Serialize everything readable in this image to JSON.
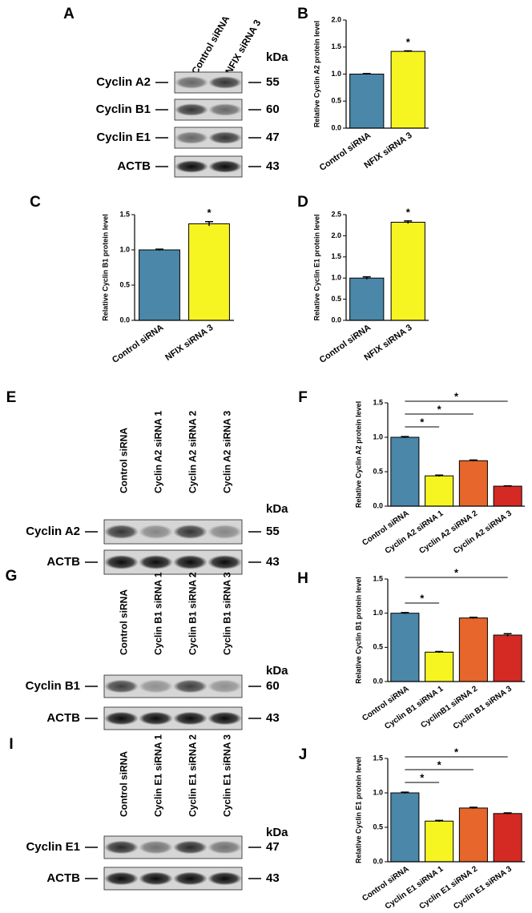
{
  "blots": [
    {
      "panel": "A",
      "lanes": [
        "Control siRNA",
        "NFIX siRNA 3"
      ],
      "kda_header": "kDa",
      "rows": [
        {
          "label": "Cyclin A2",
          "kda": 55
        },
        {
          "label": "Cyclin B1",
          "kda": 60
        },
        {
          "label": "Cyclin E1",
          "kda": 47
        },
        {
          "label": "ACTB",
          "kda": 43
        }
      ]
    },
    {
      "panel": "E",
      "lanes": [
        "Control siRNA",
        "Cyclin A2 siRNA 1",
        "Cyclin A2 siRNA 2",
        "Cyclin A2 siRNA 3"
      ],
      "kda_header": "kDa",
      "rows": [
        {
          "label": "Cyclin A2",
          "kda": 55
        },
        {
          "label": "ACTB",
          "kda": 43
        }
      ]
    },
    {
      "panel": "G",
      "lanes": [
        "Control siRNA",
        "Cyclin B1 siRNA 1",
        "Cyclin B1 siRNA 2",
        "Cyclin B1 siRNA 3"
      ],
      "kda_header": "kDa",
      "rows": [
        {
          "label": "Cyclin B1",
          "kda": 60
        },
        {
          "label": "ACTB",
          "kda": 43
        }
      ]
    },
    {
      "panel": "I",
      "lanes": [
        "Control siRNA",
        "Cyclin E1 siRNA 1",
        "Cyclin E1 siRNA 2",
        "Cyclin E1 siRNA 3"
      ],
      "kda_header": "kDa",
      "rows": [
        {
          "label": "Cyclin E1",
          "kda": 47
        },
        {
          "label": "ACTB",
          "kda": 43
        }
      ]
    }
  ],
  "chart_data": [
    {
      "type": "bar",
      "panel": "B",
      "y_label": "Relative Cyclin A2 protein level",
      "categories": [
        "Control siRNA",
        "NFIX siRNA 3"
      ],
      "values": [
        1.0,
        1.42
      ],
      "errors": [
        0.01,
        0.01
      ],
      "colors": [
        "#4a87a8",
        "#f7f521"
      ],
      "ylim": [
        0,
        2.0
      ],
      "yticks": [
        {
          "value": 0,
          "label": "0.0"
        },
        {
          "value": 0.5,
          "label": "0.5"
        },
        {
          "value": 1.0,
          "label": "1.0"
        },
        {
          "value": 1.5,
          "label": "1.5"
        },
        {
          "value": 2.0,
          "label": "2.0"
        }
      ],
      "significance": [
        {
          "label": "*",
          "from": 1,
          "to": 1
        }
      ]
    },
    {
      "type": "bar",
      "panel": "C",
      "y_label": "Relative Cyclin B1 protein level",
      "categories": [
        "Control siRNA",
        "NFIX siRNA 3"
      ],
      "values": [
        1.0,
        1.37
      ],
      "errors": [
        0.01,
        0.03
      ],
      "colors": [
        "#4a87a8",
        "#f7f521"
      ],
      "ylim": [
        0,
        1.5
      ],
      "yticks": [
        {
          "value": 0,
          "label": "0.0"
        },
        {
          "value": 0.5,
          "label": "0.5"
        },
        {
          "value": 1.0,
          "label": "1.0"
        },
        {
          "value": 1.5,
          "label": "1.5"
        }
      ],
      "significance": [
        {
          "label": "*",
          "from": 1,
          "to": 1
        }
      ]
    },
    {
      "type": "bar",
      "panel": "D",
      "y_label": "Relative Cyclin E1 protein level",
      "categories": [
        "Control siRNA",
        "NFIX siRNA 3"
      ],
      "values": [
        1.0,
        2.32
      ],
      "errors": [
        0.03,
        0.03
      ],
      "colors": [
        "#4a87a8",
        "#f7f521"
      ],
      "ylim": [
        0,
        2.5
      ],
      "yticks": [
        {
          "value": 0,
          "label": "0.0"
        },
        {
          "value": 0.5,
          "label": "0.5"
        },
        {
          "value": 1.0,
          "label": "1.0"
        },
        {
          "value": 1.5,
          "label": "1.5"
        },
        {
          "value": 2.0,
          "label": "2.0"
        },
        {
          "value": 2.5,
          "label": "2.5"
        }
      ],
      "significance": [
        {
          "label": "*",
          "from": 1,
          "to": 1
        }
      ]
    },
    {
      "type": "bar",
      "panel": "F",
      "y_label": "Relative Cyclin A2 protein level",
      "categories": [
        "Control siRNA",
        "Cyclin A2 siRNA 1",
        "Cyclin A2 siRNA 2",
        "Cyclin A2 siRNA 3"
      ],
      "values": [
        1.0,
        0.44,
        0.66,
        0.29
      ],
      "errors": [
        0.01,
        0.01,
        0.01,
        0.005
      ],
      "colors": [
        "#4a87a8",
        "#f7f521",
        "#e6662b",
        "#d52a24"
      ],
      "ylim": [
        0,
        1.5
      ],
      "yticks": [
        {
          "value": 0,
          "label": "0.0"
        },
        {
          "value": 0.5,
          "label": "0.5"
        },
        {
          "value": 1.0,
          "label": "1.0"
        },
        {
          "value": 1.5,
          "label": "1.5"
        }
      ],
      "significance": [
        {
          "label": "*",
          "from": 0,
          "to": 1
        },
        {
          "label": "*",
          "from": 0,
          "to": 2
        },
        {
          "label": "*",
          "from": 0,
          "to": 3
        }
      ]
    },
    {
      "type": "bar",
      "panel": "H",
      "y_label": "Relative Cyclin B1 protein level",
      "categories": [
        "Control siRNA",
        "Cyclin B1 siRNA 1",
        "CyclinB1 siRNA 2",
        "Cyclin B1 siRNA 3"
      ],
      "values": [
        1.0,
        0.43,
        0.93,
        0.68
      ],
      "errors": [
        0.01,
        0.01,
        0.01,
        0.02
      ],
      "colors": [
        "#4a87a8",
        "#f7f521",
        "#e6662b",
        "#d52a24"
      ],
      "ylim": [
        0,
        1.5
      ],
      "yticks": [
        {
          "value": 0,
          "label": "0.0"
        },
        {
          "value": 0.5,
          "label": "0.5"
        },
        {
          "value": 1.0,
          "label": "1.0"
        },
        {
          "value": 1.5,
          "label": "1.5"
        }
      ],
      "significance": [
        {
          "label": "*",
          "from": 0,
          "to": 1
        },
        {
          "label": "*",
          "from": 0,
          "to": 3
        }
      ]
    },
    {
      "type": "bar",
      "panel": "J",
      "y_label": "Relative Cyclin E1 protein level",
      "categories": [
        "Control siRNA",
        "Cyclin E1 siRNA 1",
        "Cyclin E1 siRNA 2",
        "Cyclin E1 siRNA 3"
      ],
      "values": [
        1.0,
        0.59,
        0.78,
        0.7
      ],
      "errors": [
        0.01,
        0.01,
        0.01,
        0.01
      ],
      "colors": [
        "#4a87a8",
        "#f7f521",
        "#e6662b",
        "#d52a24"
      ],
      "ylim": [
        0,
        1.5
      ],
      "yticks": [
        {
          "value": 0,
          "label": "0.0"
        },
        {
          "value": 0.5,
          "label": "0.5"
        },
        {
          "value": 1.0,
          "label": "1.0"
        },
        {
          "value": 1.5,
          "label": "1.5"
        }
      ],
      "significance": [
        {
          "label": "*",
          "from": 0,
          "to": 1
        },
        {
          "label": "*",
          "from": 0,
          "to": 2
        },
        {
          "label": "*",
          "from": 0,
          "to": 3
        }
      ]
    }
  ]
}
